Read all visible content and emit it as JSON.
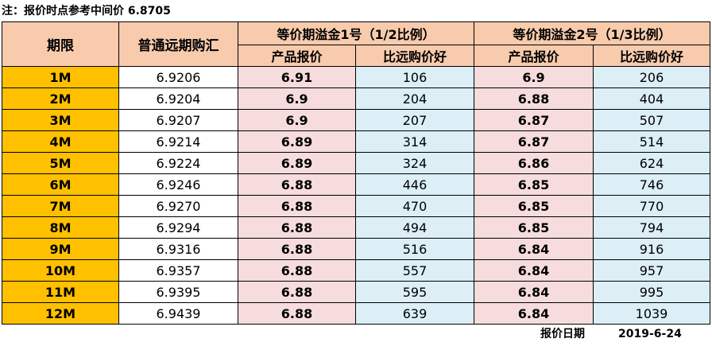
{
  "note": "注：报价时点参考中间价 6.8705",
  "headers": {
    "tenor": "期限",
    "forward": "普通远期购汇",
    "product1": "等价期溢金1号（1/2比例）",
    "product2": "等价期溢金2号（1/3比例）",
    "quote": "产品报价",
    "better": "比远购价好"
  },
  "rows": [
    {
      "tenor": "1M",
      "forward": "6.9206",
      "q1": "6.91",
      "b1": "106",
      "q2": "6.9",
      "b2": "206"
    },
    {
      "tenor": "2M",
      "forward": "6.9204",
      "q1": "6.9",
      "b1": "204",
      "q2": "6.88",
      "b2": "404"
    },
    {
      "tenor": "3M",
      "forward": "6.9207",
      "q1": "6.9",
      "b1": "207",
      "q2": "6.87",
      "b2": "507"
    },
    {
      "tenor": "4M",
      "forward": "6.9214",
      "q1": "6.89",
      "b1": "314",
      "q2": "6.87",
      "b2": "514"
    },
    {
      "tenor": "5M",
      "forward": "6.9224",
      "q1": "6.89",
      "b1": "324",
      "q2": "6.86",
      "b2": "624"
    },
    {
      "tenor": "6M",
      "forward": "6.9246",
      "q1": "6.88",
      "b1": "446",
      "q2": "6.85",
      "b2": "746"
    },
    {
      "tenor": "7M",
      "forward": "6.9270",
      "q1": "6.88",
      "b1": "470",
      "q2": "6.85",
      "b2": "770"
    },
    {
      "tenor": "8M",
      "forward": "6.9294",
      "q1": "6.88",
      "b1": "494",
      "q2": "6.85",
      "b2": "794"
    },
    {
      "tenor": "9M",
      "forward": "6.9316",
      "q1": "6.88",
      "b1": "516",
      "q2": "6.84",
      "b2": "916"
    },
    {
      "tenor": "10M",
      "forward": "6.9357",
      "q1": "6.88",
      "b1": "557",
      "q2": "6.84",
      "b2": "957"
    },
    {
      "tenor": "11M",
      "forward": "6.9395",
      "q1": "6.88",
      "b1": "595",
      "q2": "6.84",
      "b2": "995"
    },
    {
      "tenor": "12M",
      "forward": "6.9439",
      "q1": "6.88",
      "b1": "639",
      "q2": "6.84",
      "b2": "1039"
    }
  ],
  "footer": {
    "label": "报价日期",
    "date": "2019-6-24"
  },
  "colors": {
    "tenor_bg": "#ffc000",
    "header_bg": "#f8cbad",
    "quote_bg": "#f6dcdc",
    "better_bg": "#dceef6"
  }
}
